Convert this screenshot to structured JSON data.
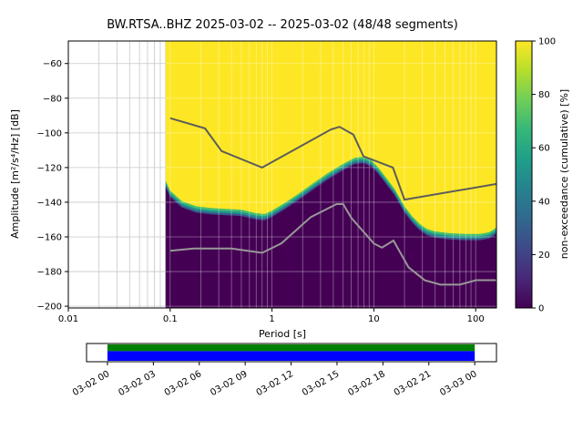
{
  "title": "BW.RTSA..BHZ  2025-03-02 -- 2025-03-02  (48/48 segments)",
  "chart_data": {
    "type": "heatmap",
    "title": "BW.RTSA..BHZ  2025-03-02 -- 2025-03-02  (48/48 segments)",
    "xlabel": "Period [s]",
    "ylabel": "Amplitude [m²/s⁴/Hz] [dB]",
    "colorbar_label": "non-exceedance (cumulative) [%]",
    "x_scale": "log",
    "grid": true,
    "xlim": [
      0.01,
      160
    ],
    "ylim": [
      -201,
      -47
    ],
    "x_ticks": [
      0.01,
      0.1,
      1,
      10,
      100
    ],
    "y_ticks": [
      -60,
      -80,
      -100,
      -120,
      -140,
      -160,
      -180,
      -200
    ],
    "data_period_range": [
      0.09,
      160
    ],
    "colors": {
      "high": "#fde725",
      "low": "#440154",
      "nhnm": "#5c5c5c",
      "nlnm": "#989898"
    },
    "band_layers": [
      {
        "name": "band-green",
        "offset": 7,
        "color": "#44bf70"
      },
      {
        "name": "band-teal",
        "offset": 4.5,
        "color": "#21918c"
      },
      {
        "name": "band-blue",
        "offset": 2,
        "color": "#3b528b"
      },
      {
        "name": "low-area",
        "offset": 0,
        "color": "#440154"
      }
    ],
    "distribution_boundary": [
      [
        0.09,
        -131
      ],
      [
        0.1,
        -137
      ],
      [
        0.13,
        -143
      ],
      [
        0.18,
        -146
      ],
      [
        0.25,
        -147
      ],
      [
        0.35,
        -147.5
      ],
      [
        0.5,
        -148
      ],
      [
        0.7,
        -150
      ],
      [
        0.85,
        -150.5
      ],
      [
        1.0,
        -148.5
      ],
      [
        1.3,
        -144.5
      ],
      [
        1.8,
        -139
      ],
      [
        2.5,
        -133
      ],
      [
        3.5,
        -127
      ],
      [
        5,
        -121.5
      ],
      [
        6.5,
        -118
      ],
      [
        8,
        -117.5
      ],
      [
        9.5,
        -119.5
      ],
      [
        11,
        -123.5
      ],
      [
        13,
        -129
      ],
      [
        16,
        -136
      ],
      [
        20,
        -146
      ],
      [
        24,
        -152
      ],
      [
        28,
        -156
      ],
      [
        33,
        -159
      ],
      [
        40,
        -160.5
      ],
      [
        55,
        -161.5
      ],
      [
        80,
        -162
      ],
      [
        110,
        -162
      ],
      [
        135,
        -161
      ],
      [
        150,
        -159.5
      ],
      [
        160,
        -158
      ]
    ],
    "noise_models": {
      "nhnm": [
        [
          0.1,
          -91.5
        ],
        [
          0.22,
          -97.4
        ],
        [
          0.32,
          -110.5
        ],
        [
          0.8,
          -120.0
        ],
        [
          3.8,
          -98.0
        ],
        [
          4.6,
          -96.5
        ],
        [
          6.3,
          -101.0
        ],
        [
          7.9,
          -113.5
        ],
        [
          15.4,
          -120.0
        ],
        [
          20.0,
          -138.5
        ],
        [
          200,
          -128.5
        ]
      ],
      "nlnm": [
        [
          0.1,
          -168.0
        ],
        [
          0.17,
          -166.7
        ],
        [
          0.4,
          -166.7
        ],
        [
          0.8,
          -169.2
        ],
        [
          1.24,
          -163.7
        ],
        [
          2.4,
          -148.6
        ],
        [
          4.3,
          -141.1
        ],
        [
          5.0,
          -141.1
        ],
        [
          6.0,
          -149.0
        ],
        [
          10.0,
          -163.8
        ],
        [
          12.0,
          -166.2
        ],
        [
          15.6,
          -162.1
        ],
        [
          21.9,
          -177.5
        ],
        [
          31.6,
          -185.0
        ],
        [
          45.0,
          -187.5
        ],
        [
          70.0,
          -187.5
        ],
        [
          101.0,
          -185.0
        ],
        [
          154.0,
          -185.0
        ],
        [
          200,
          -185.9
        ]
      ]
    },
    "colorbar": {
      "ticks": [
        0,
        20,
        40,
        60,
        80,
        100
      ],
      "range": [
        0,
        100
      ],
      "colors": [
        "#440154",
        "#482878",
        "#3e4989",
        "#31688e",
        "#26828e",
        "#1f9e89",
        "#35b779",
        "#6ece58",
        "#b5de2b",
        "#fde725"
      ]
    },
    "timeline": {
      "labels": [
        "03-02 00",
        "03-02 03",
        "03-02 06",
        "03-02 09",
        "03-02 12",
        "03-02 15",
        "03-02 18",
        "03-02 21",
        "03-03 00"
      ],
      "bar_frac": [
        0.051,
        0.947
      ],
      "used_color": "#008000",
      "data_color": "#0000ff"
    }
  }
}
